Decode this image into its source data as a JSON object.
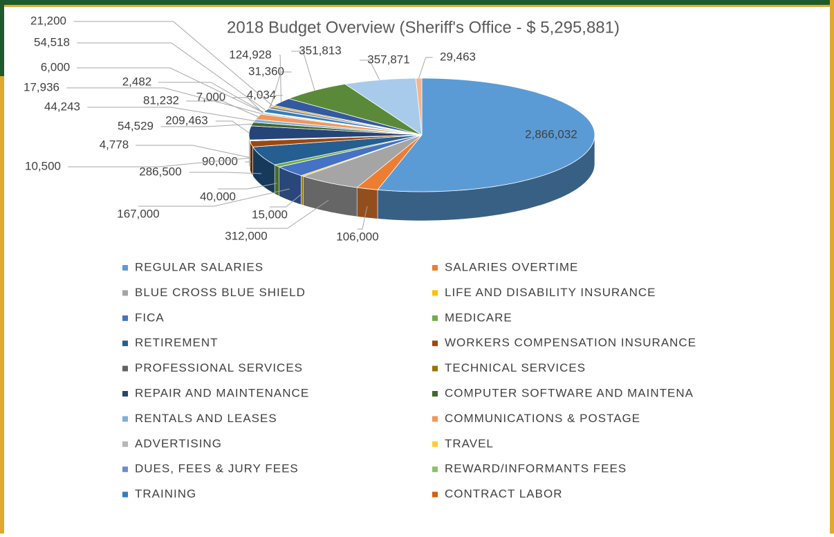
{
  "chart_data": {
    "type": "pie3d",
    "title": "2018 Budget Overview (Sheriff's Office - $ 5,295,881)",
    "categories": [
      "REGULAR SALARIES",
      "SALARIES OVERTIME",
      "BLUE CROSS BLUE SHIELD",
      "LIFE AND DISABILITY INSURANCE",
      "FICA",
      "MEDICARE",
      "RETIREMENT",
      "WORKERS COMPENSATION INSURANCE",
      "PROFESSIONAL SERVICES",
      "TECHNICAL SERVICES",
      "REPAIR AND MAINTENANCE",
      "COMPUTER SOFTWARE AND MAINTENA",
      "RENTALS AND LEASES",
      "COMMUNICATIONS & POSTAGE",
      "ADVERTISING",
      "TRAVEL",
      "DUES, FEES & JURY FEES",
      "REWARD/INFORMANTS FEES",
      "TRAINING",
      "CONTRACT LABOR",
      null,
      null,
      null,
      null,
      null,
      null
    ],
    "values": [
      2866032,
      106000,
      312000,
      15000,
      167000,
      40000,
      286500,
      90000,
      10500,
      4778,
      209463,
      54529,
      44243,
      81232,
      17936,
      7000,
      6000,
      2482,
      54518,
      4034,
      31360,
      21200,
      124928,
      351813,
      357871,
      29463
    ],
    "value_labels": [
      "2,866,032",
      "106,000",
      "312,000",
      "15,000",
      "167,000",
      "40,000",
      "286,500",
      "90,000",
      "10,500",
      "4,778",
      "209,463",
      "54,529",
      "44,243",
      "81,232",
      "17,936",
      "7,000",
      "6,000",
      "2,482",
      "54,518",
      "4,034",
      "31,360",
      "21,200",
      "124,928",
      "351,813",
      "357,871",
      "29,463"
    ],
    "colors": [
      "#5b9bd5",
      "#ed7d31",
      "#a5a5a5",
      "#ffc000",
      "#4472c4",
      "#70ad47",
      "#255e91",
      "#9e480e",
      "#636363",
      "#997300",
      "#264478",
      "#43682b",
      "#7cafdd",
      "#f1975a",
      "#b7b7b7",
      "#ffcd33",
      "#698ed0",
      "#8cc168",
      "#327dc2",
      "#d26012",
      "#848484",
      "#cc9a00",
      "#335aa1",
      "#5a8a39",
      "#a9cbeb",
      "#f5b48a"
    ],
    "legend": "bottom"
  }
}
